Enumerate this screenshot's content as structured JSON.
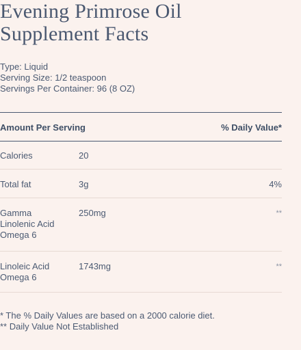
{
  "title_line1": "Evening Primrose Oil",
  "title_line2": "Supplement Facts",
  "meta": {
    "type": "Type: Liquid",
    "serving_size": "Serving Size: 1/2 teaspoon",
    "servings_per_container": "Servings Per Container: 96 (8 OZ)"
  },
  "table": {
    "header_left": "Amount Per Serving",
    "header_right": "% Daily Value*",
    "rows": [
      {
        "name_lines": [
          "Calories"
        ],
        "amount": "20",
        "dv": ""
      },
      {
        "name_lines": [
          "Total fat"
        ],
        "amount": "3g",
        "dv": "4%"
      },
      {
        "name_lines": [
          "Gamma",
          "Linolenic Acid",
          "Omega 6"
        ],
        "amount": "250mg",
        "dv": "**"
      },
      {
        "name_lines": [
          "Linoleic Acid",
          "Omega 6"
        ],
        "amount": "1743mg",
        "dv": "**"
      }
    ]
  },
  "footnotes": {
    "line1": "* The % Daily Values are based on a 2000 calorie diet.",
    "line2": "** Daily Value Not Established"
  },
  "colors": {
    "background": "#fbf2ee",
    "text": "#3f4f66",
    "rule_dark": "#4b5a72",
    "rule_light": "#e6d9d3"
  }
}
